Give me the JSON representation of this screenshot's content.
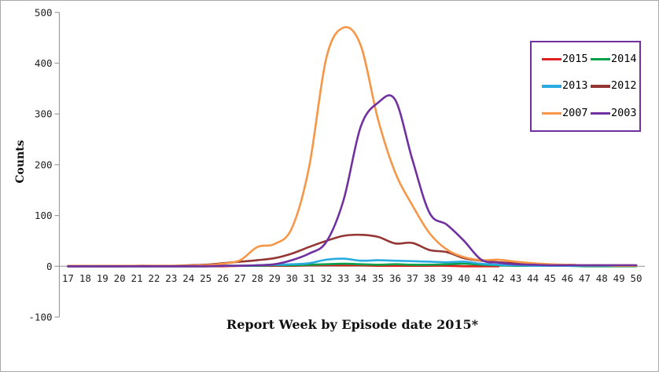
{
  "window": {
    "background": "#ffffff",
    "border_color": "#a8a8a8"
  },
  "chart_data": {
    "type": "line",
    "title": "",
    "xlabel": "Report Week by Episode date 2015*",
    "ylabel": "Counts",
    "x": [
      17,
      18,
      19,
      20,
      21,
      22,
      23,
      24,
      25,
      26,
      27,
      28,
      29,
      30,
      31,
      32,
      33,
      34,
      35,
      36,
      37,
      38,
      39,
      40,
      41,
      42,
      43,
      44,
      45,
      46,
      47,
      48,
      49,
      50
    ],
    "ylim": [
      -100,
      500
    ],
    "yticks": [
      -100,
      0,
      100,
      200,
      300,
      400,
      500
    ],
    "grid": false,
    "smooth_lines": true,
    "axis_color": "#9d9d9d",
    "legend": {
      "position": "top-right",
      "columns": 2,
      "border_color": "#7030a0",
      "order": [
        "2015",
        "2014",
        "2013",
        "2012",
        "2007",
        "2003"
      ]
    },
    "series": [
      {
        "name": "2015",
        "color": "#e01f1f",
        "values": [
          0,
          0,
          0,
          0,
          0,
          0,
          0,
          0,
          0,
          0,
          1,
          1,
          1,
          1,
          2,
          2,
          2,
          2,
          1,
          1,
          1,
          1,
          1,
          0,
          0,
          0,
          null,
          null,
          null,
          null,
          null,
          null,
          null,
          null
        ]
      },
      {
        "name": "2014",
        "color": "#00a14b",
        "values": [
          0,
          0,
          0,
          0,
          0,
          0,
          0,
          0,
          0,
          1,
          1,
          1,
          2,
          2,
          3,
          4,
          5,
          4,
          3,
          4,
          3,
          3,
          4,
          5,
          3,
          2,
          1,
          1,
          1,
          1,
          0,
          0,
          0,
          0
        ]
      },
      {
        "name": "2013",
        "color": "#29abe2",
        "values": [
          0,
          0,
          0,
          0,
          0,
          0,
          0,
          0,
          1,
          1,
          1,
          2,
          3,
          4,
          6,
          13,
          15,
          11,
          12,
          11,
          10,
          9,
          8,
          9,
          5,
          3,
          2,
          1,
          1,
          1,
          1,
          1,
          1,
          1
        ]
      },
      {
        "name": "2012",
        "color": "#943634",
        "values": [
          0,
          0,
          0,
          0,
          1,
          1,
          1,
          2,
          3,
          6,
          9,
          12,
          16,
          25,
          38,
          50,
          60,
          62,
          58,
          45,
          46,
          32,
          28,
          16,
          11,
          8,
          6,
          4,
          3,
          3,
          2,
          2,
          2,
          2
        ]
      },
      {
        "name": "2007",
        "color": "#f79646",
        "values": [
          1,
          1,
          1,
          1,
          1,
          1,
          1,
          1,
          2,
          5,
          12,
          38,
          44,
          75,
          195,
          410,
          470,
          435,
          290,
          185,
          120,
          65,
          33,
          18,
          12,
          13,
          9,
          6,
          4,
          3,
          2,
          2,
          1,
          1
        ]
      },
      {
        "name": "2003",
        "color": "#7030a0",
        "values": [
          0,
          0,
          0,
          0,
          0,
          0,
          0,
          0,
          0,
          1,
          1,
          2,
          4,
          12,
          25,
          48,
          130,
          275,
          322,
          328,
          210,
          105,
          82,
          50,
          13,
          7,
          4,
          3,
          2,
          2,
          2,
          2,
          2,
          2
        ]
      }
    ]
  }
}
